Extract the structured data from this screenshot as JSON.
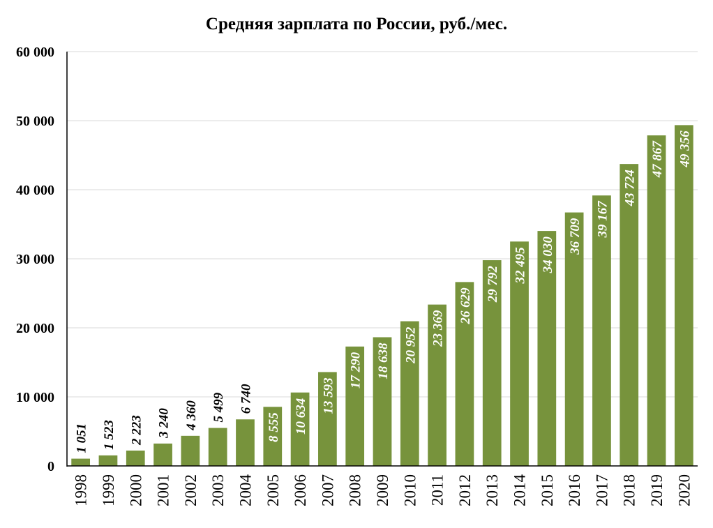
{
  "chart_data": {
    "type": "bar",
    "title": "Средняя зарплата  по России, руб./мес.",
    "xlabel": "",
    "ylabel": "",
    "categories": [
      "1998",
      "1999",
      "2000",
      "2001",
      "2002",
      "2003",
      "2004",
      "2005",
      "2006",
      "2007",
      "2008",
      "2009",
      "2010",
      "2011",
      "2012",
      "2013",
      "2014",
      "2015",
      "2016",
      "2017",
      "2018",
      "2019",
      "2020"
    ],
    "values": [
      1051,
      1523,
      2223,
      3240,
      4360,
      5499,
      6740,
      8555,
      10634,
      13593,
      17290,
      18638,
      20952,
      23369,
      26629,
      29792,
      32495,
      34030,
      36709,
      39167,
      43724,
      47867,
      49356
    ],
    "data_labels": [
      "1 051",
      "1 523",
      "2 223",
      "3 240",
      "4 360",
      "5 499",
      "6 740",
      "8 555",
      "10 634",
      "13 593",
      "17 290",
      "18 638",
      "20 952",
      "23 369",
      "26 629",
      "29 792",
      "32 495",
      "34 030",
      "36 709",
      "39 167",
      "43 724",
      "47 867",
      "49 356"
    ],
    "yticks": [
      0,
      10000,
      20000,
      30000,
      40000,
      50000,
      60000
    ],
    "ytick_labels": [
      "0",
      "10 000",
      "20 000",
      "30 000",
      "40 000",
      "50 000",
      "60 000"
    ],
    "ylim": [
      0,
      60000
    ],
    "grid": true,
    "legend": "none",
    "bar_color": "#77933c",
    "label_color_inside": "#ffffff",
    "label_color_outside": "#000000"
  }
}
